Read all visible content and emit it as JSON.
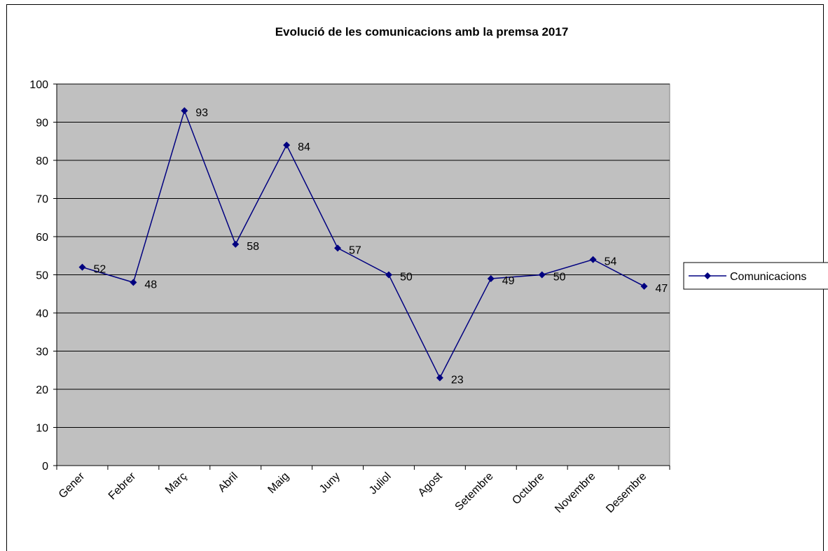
{
  "chart_data": {
    "type": "line",
    "title": "Evolució de les comunicacions amb la premsa 2017",
    "xlabel": "",
    "ylabel": "",
    "categories": [
      "Gener",
      "Febrer",
      "Març",
      "Abril",
      "Maig",
      "Juny",
      "Juliol",
      "Agost",
      "Setembre",
      "Octubre",
      "Novembre",
      "Desembre"
    ],
    "series": [
      {
        "name": "Comunicacions",
        "values": [
          52,
          48,
          93,
          58,
          84,
          57,
          50,
          23,
          49,
          50,
          54,
          47
        ],
        "color": "#000080",
        "marker": "diamond"
      }
    ],
    "ylim": [
      0,
      100
    ],
    "yticks": [
      "0",
      "10",
      "20",
      "30",
      "40",
      "50",
      "60",
      "70",
      "80",
      "90",
      "100"
    ],
    "grid": true,
    "plot_background": "#c0c0c0",
    "legend_position": "right",
    "data_labels": true
  }
}
